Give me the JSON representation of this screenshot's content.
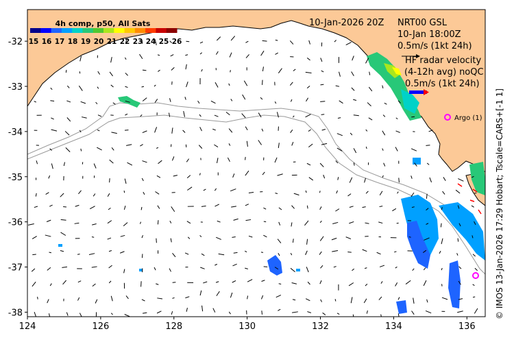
{
  "legend": {
    "title": "4h comp, p50, All Sats",
    "ticks": [
      "15",
      "16",
      "17",
      "18",
      "19",
      "20",
      "21",
      "22",
      "23",
      "24",
      "25",
      "26"
    ],
    "colors": [
      "#00008b",
      "#0000ff",
      "#1e64ff",
      "#00a0ff",
      "#00d2c8",
      "#28c878",
      "#50c832",
      "#aae61e",
      "#ffff00",
      "#ffc800",
      "#ff8c00",
      "#ff3c00",
      "#c80000",
      "#8b0000"
    ]
  },
  "header": {
    "date": "10-Jan-2026 20Z",
    "product": "NRT00 GSL",
    "time": "10-Jan 18:00Z",
    "scale": "0.5m/s (1kt 24h)",
    "hf_line1": "HF radar velocity",
    "hf_line2": "(4-12h avg) noQC",
    "hf_scale": "0.5m/s (1kt 24h)"
  },
  "argo": {
    "label": "Argo (1)"
  },
  "axes": {
    "x_ticks": [
      "124",
      "126",
      "128",
      "130",
      "132",
      "134",
      "136"
    ],
    "y_ticks": [
      "-32",
      "-33",
      "-34",
      "-35",
      "-36",
      "-37",
      "-38"
    ],
    "lon_range": [
      124,
      136.5
    ],
    "lat_range": [
      -38.1,
      -31.3
    ]
  },
  "credit": "© IMOS 13-Jan-2026 17:29 Hobart; Tscale=CARS+[-1 1]",
  "colors": {
    "land": "#fcc997",
    "argo": "#ff00ff",
    "isobath": "#999999"
  }
}
